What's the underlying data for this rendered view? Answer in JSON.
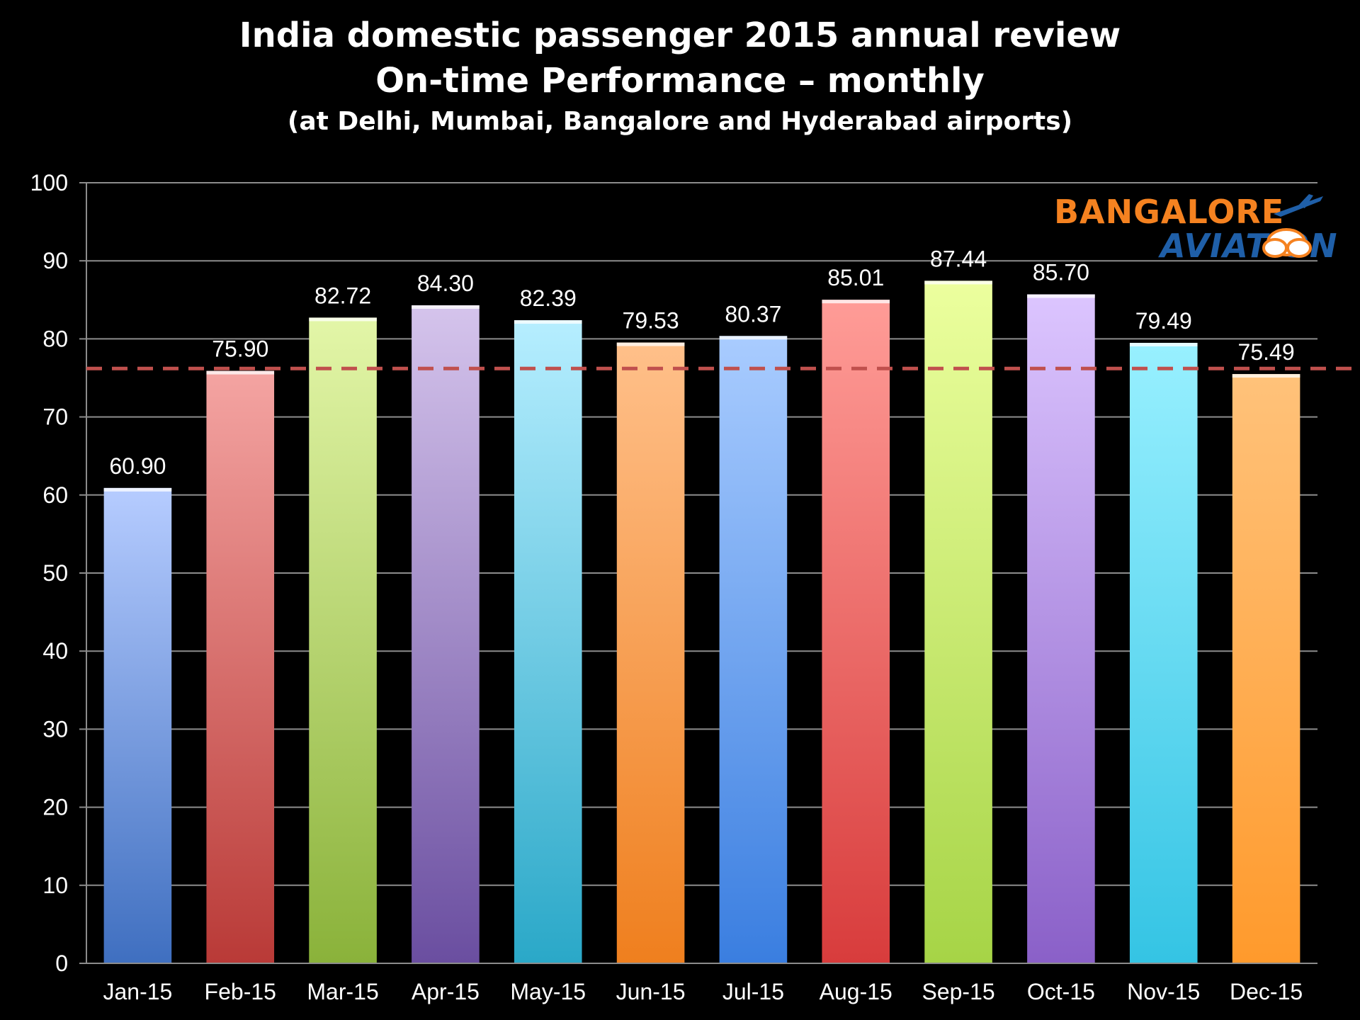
{
  "title": {
    "line1": "India domestic passenger 2015 annual review",
    "line2": "On-time Performance – monthly",
    "line3": "(at Delhi, Mumbai, Bangalore and Hyderabad airports)"
  },
  "logo": {
    "line1": "BANGALORE",
    "line2": "AVIATION",
    "icon": "airplane-cloud-icon"
  },
  "colors": {
    "background": "#000000",
    "gridline": "#8c8c8c",
    "average_line": "#c0504d",
    "bar_palette": [
      "#7aa3e6",
      "#e06f6c",
      "#b3d36a",
      "#9d7fc4",
      "#5fc1df",
      "#f99a4a"
    ]
  },
  "chart_data": {
    "type": "bar",
    "categories": [
      "Jan-15",
      "Feb-15",
      "Mar-15",
      "Apr-15",
      "May-15",
      "Jun-15",
      "Jul-15",
      "Aug-15",
      "Sep-15",
      "Oct-15",
      "Nov-15",
      "Dec-15"
    ],
    "values": [
      60.9,
      75.9,
      82.72,
      84.3,
      82.39,
      79.53,
      80.37,
      85.01,
      87.44,
      85.7,
      79.49,
      75.49
    ],
    "value_labels": [
      "60.90",
      "75.90",
      "82.72",
      "84.30",
      "82.39",
      "79.53",
      "80.37",
      "85.01",
      "87.44",
      "85.70",
      "79.49",
      "75.49"
    ],
    "bar_colors": [
      [
        "#b6ccff",
        "#3f6fc0"
      ],
      [
        "#f4a4a2",
        "#b93a37"
      ],
      [
        "#e3f6a8",
        "#8ab23a"
      ],
      [
        "#d5c4ec",
        "#6a4ea0"
      ],
      [
        "#b6eeff",
        "#2aa8c8"
      ],
      [
        "#ffc08a",
        "#ef7f1e"
      ],
      [
        "#a9ccff",
        "#3a7ee0"
      ],
      [
        "#ff9c97",
        "#d83c3c"
      ],
      [
        "#ecff9e",
        "#a6d446"
      ],
      [
        "#dcc5ff",
        "#8a60c8"
      ],
      [
        "#98f0ff",
        "#34c4e4"
      ],
      [
        "#ffc27a",
        "#ff9a2c"
      ]
    ],
    "y_ticks": [
      "0",
      "10",
      "20",
      "30",
      "40",
      "50",
      "60",
      "70",
      "80",
      "90",
      "100"
    ],
    "ylim": [
      0,
      100
    ],
    "average_line_value": 76.2,
    "grid": true,
    "legend": "none",
    "xlabel": "",
    "ylabel": ""
  }
}
